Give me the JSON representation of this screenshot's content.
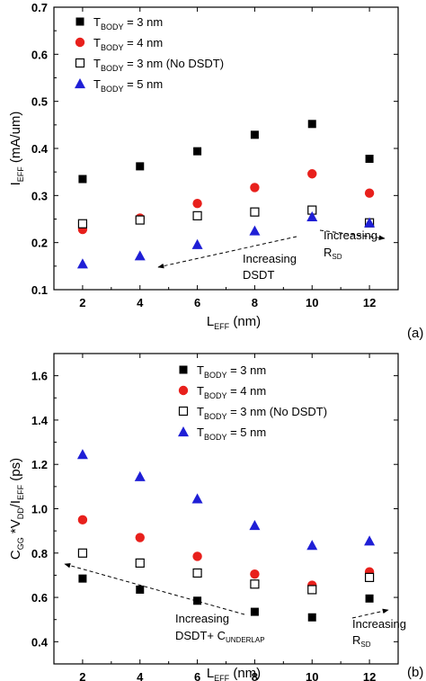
{
  "chart_data": [
    {
      "type": "scatter",
      "panel_label": "(a)",
      "xlabel": {
        "main": "L",
        "sub": "EFF",
        "rest": " (nm)"
      },
      "ylabel": {
        "main": "I",
        "sub": "EFF",
        "rest": " (mA/um)"
      },
      "xlim": [
        1,
        13
      ],
      "ylim": [
        0.1,
        0.7
      ],
      "xticks": [
        2,
        4,
        6,
        8,
        10,
        12
      ],
      "yticks": [
        0.1,
        0.2,
        0.3,
        0.4,
        0.5,
        0.6,
        0.7
      ],
      "ytick_decimals": 1,
      "x": [
        2,
        4,
        6,
        8,
        10,
        12
      ],
      "legend_position": "top-left",
      "series": [
        {
          "name": {
            "main": "T",
            "sub": "BODY",
            "rest": " = 3 nm"
          },
          "marker": "square-filled",
          "color": "#000000",
          "values": [
            0.335,
            0.362,
            0.394,
            0.429,
            0.452,
            0.378
          ]
        },
        {
          "name": {
            "main": "T",
            "sub": "BODY",
            "rest": " = 4 nm"
          },
          "marker": "circle-filled",
          "color": "#e8201c",
          "values": [
            0.228,
            0.252,
            0.283,
            0.317,
            0.346,
            0.305
          ]
        },
        {
          "name": {
            "main": "T",
            "sub": "BODY",
            "rest": " = 3 nm (No DSDT)"
          },
          "marker": "square-open",
          "color": "#000000",
          "values": [
            0.24,
            0.248,
            0.257,
            0.265,
            0.269,
            0.242
          ]
        },
        {
          "name": {
            "main": "T",
            "sub": "BODY",
            "rest": " = 5 nm"
          },
          "marker": "triangle-filled",
          "color": "#1f1fd6",
          "values": [
            0.155,
            0.172,
            0.196,
            0.225,
            0.255,
            0.242
          ]
        }
      ],
      "annotations": [
        {
          "lines": [
            "Increasing",
            "DSDT"
          ]
        },
        {
          "lines": [
            "Increasing",
            "R|SD"
          ]
        }
      ]
    },
    {
      "type": "scatter",
      "panel_label": "(b)",
      "xlabel": {
        "main": "L",
        "sub": "EFF",
        "rest": " (nm)"
      },
      "ylabel": {
        "main": "C",
        "sub": "GG",
        "rest": " *V",
        "sub2": "DD",
        "rest2": "/I",
        "sub3": "EFF",
        "rest3": " (ps)"
      },
      "xlim": [
        1,
        13
      ],
      "ylim": [
        0.3,
        1.7
      ],
      "xticks": [
        2,
        4,
        6,
        8,
        10,
        12
      ],
      "yticks": [
        0.4,
        0.6,
        0.8,
        1.0,
        1.2,
        1.4,
        1.6
      ],
      "ytick_decimals": 1,
      "x": [
        2,
        4,
        6,
        8,
        10,
        12
      ],
      "legend_position": "top-right",
      "series": [
        {
          "name": {
            "main": "T",
            "sub": "BODY",
            "rest": " = 3 nm"
          },
          "marker": "square-filled",
          "color": "#000000",
          "values": [
            0.685,
            0.635,
            0.585,
            0.535,
            0.51,
            0.595
          ]
        },
        {
          "name": {
            "main": "T",
            "sub": "BODY",
            "rest": " = 4 nm"
          },
          "marker": "circle-filled",
          "color": "#e8201c",
          "values": [
            0.95,
            0.87,
            0.785,
            0.705,
            0.655,
            0.715
          ]
        },
        {
          "name": {
            "main": "T",
            "sub": "BODY",
            "rest": " = 3 nm (No DSDT)"
          },
          "marker": "square-open",
          "color": "#000000",
          "values": [
            0.8,
            0.755,
            0.71,
            0.66,
            0.635,
            0.69
          ]
        },
        {
          "name": {
            "main": "T",
            "sub": "BODY",
            "rest": " = 5 nm"
          },
          "marker": "triangle-filled",
          "color": "#1f1fd6",
          "values": [
            1.245,
            1.145,
            1.045,
            0.925,
            0.835,
            0.855
          ]
        }
      ],
      "annotations": [
        {
          "lines": [
            "Increasing",
            "DSDT+ C|UNDERLAP"
          ]
        },
        {
          "lines": [
            "Increasing",
            "R|SD"
          ]
        }
      ]
    }
  ]
}
